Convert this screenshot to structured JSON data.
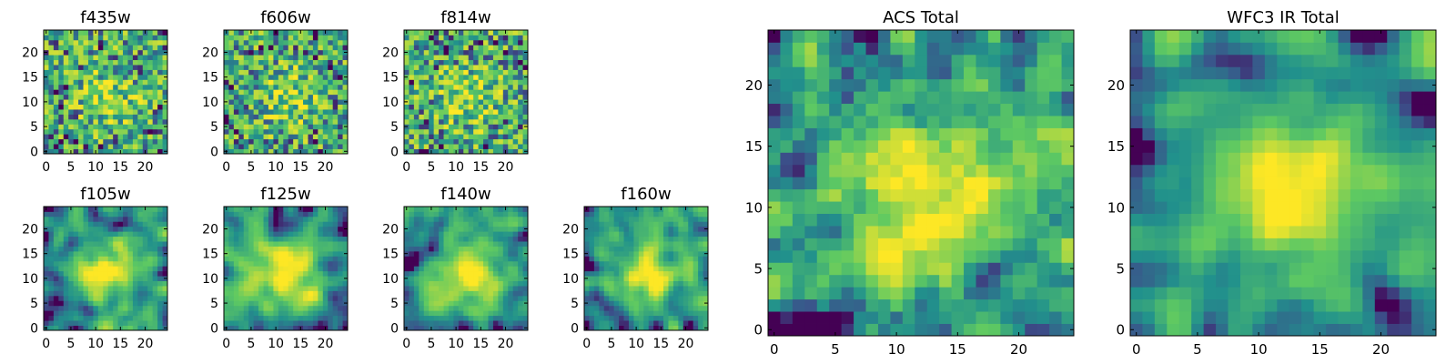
{
  "figure": {
    "background": "#ffffff",
    "colormap": "viridis",
    "colormap_stops": [
      "#440154",
      "#3b528b",
      "#21918c",
      "#5ec962",
      "#fde725"
    ]
  },
  "chart_data": [
    {
      "type": "heatmap",
      "title": "f435w",
      "grid_size": [
        25,
        25
      ],
      "xlim": [
        0,
        24
      ],
      "ylim": [
        0,
        24
      ],
      "x_ticks": [
        0,
        5,
        10,
        15,
        20
      ],
      "y_ticks": [
        0,
        5,
        10,
        15,
        20
      ],
      "pattern": "noise",
      "seed": 11
    },
    {
      "type": "heatmap",
      "title": "f606w",
      "grid_size": [
        25,
        25
      ],
      "xlim": [
        0,
        24
      ],
      "ylim": [
        0,
        24
      ],
      "x_ticks": [
        0,
        5,
        10,
        15,
        20
      ],
      "y_ticks": [
        0,
        5,
        10,
        15,
        20
      ],
      "pattern": "noise",
      "seed": 23
    },
    {
      "type": "heatmap",
      "title": "f814w",
      "grid_size": [
        25,
        25
      ],
      "xlim": [
        0,
        24
      ],
      "ylim": [
        0,
        24
      ],
      "x_ticks": [
        0,
        5,
        10,
        15,
        20
      ],
      "y_ticks": [
        0,
        5,
        10,
        15,
        20
      ],
      "pattern": "noise",
      "seed": 37
    },
    {
      "type": "heatmap",
      "title": "f105w",
      "grid_size": [
        25,
        25
      ],
      "xlim": [
        0,
        24
      ],
      "ylim": [
        0,
        24
      ],
      "x_ticks": [
        0,
        5,
        10,
        15,
        20
      ],
      "y_ticks": [
        0,
        5,
        10,
        15,
        20
      ],
      "pattern": "smooth",
      "seed": 41
    },
    {
      "type": "heatmap",
      "title": "f125w",
      "grid_size": [
        25,
        25
      ],
      "xlim": [
        0,
        24
      ],
      "ylim": [
        0,
        24
      ],
      "x_ticks": [
        0,
        5,
        10,
        15,
        20
      ],
      "y_ticks": [
        0,
        5,
        10,
        15,
        20
      ],
      "pattern": "smooth",
      "seed": 53
    },
    {
      "type": "heatmap",
      "title": "f140w",
      "grid_size": [
        25,
        25
      ],
      "xlim": [
        0,
        24
      ],
      "ylim": [
        0,
        24
      ],
      "x_ticks": [
        0,
        5,
        10,
        15,
        20
      ],
      "y_ticks": [
        0,
        5,
        10,
        15,
        20
      ],
      "pattern": "smooth",
      "seed": 67
    },
    {
      "type": "heatmap",
      "title": "f160w",
      "grid_size": [
        25,
        25
      ],
      "xlim": [
        0,
        24
      ],
      "ylim": [
        0,
        24
      ],
      "x_ticks": [
        0,
        5,
        10,
        15,
        20
      ],
      "y_ticks": [
        0,
        5,
        10,
        15,
        20
      ],
      "pattern": "smooth",
      "seed": 79
    },
    {
      "type": "heatmap",
      "title": "ACS Total",
      "grid_size": [
        25,
        25
      ],
      "xlim": [
        0,
        24
      ],
      "ylim": [
        0,
        24
      ],
      "x_ticks": [
        0,
        5,
        10,
        15,
        20
      ],
      "y_ticks": [
        0,
        5,
        10,
        15,
        20
      ],
      "pattern": "total",
      "seed": 97
    },
    {
      "type": "heatmap",
      "title": "WFC3 IR Total",
      "grid_size": [
        25,
        25
      ],
      "xlim": [
        0,
        24
      ],
      "ylim": [
        0,
        24
      ],
      "x_ticks": [
        0,
        5,
        10,
        15,
        20
      ],
      "y_ticks": [
        0,
        5,
        10,
        15,
        20
      ],
      "pattern": "total-smooth",
      "seed": 113
    }
  ]
}
